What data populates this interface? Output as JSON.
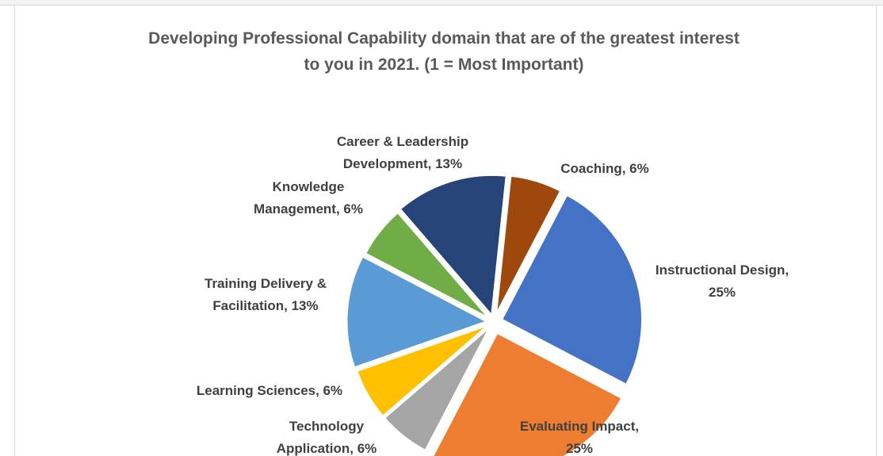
{
  "chart_data": {
    "type": "pie",
    "title_lines": [
      "Developing Professional Capability domain that are of the greatest interest",
      "to you in 2021.  (1 = Most Important)"
    ],
    "slices": [
      {
        "label_lines": [
          "Coaching, 6%"
        ],
        "value": 6,
        "color": "#9e480e"
      },
      {
        "label_lines": [
          "Instructional  Design,",
          "25%"
        ],
        "value": 25,
        "color": "#4472c4"
      },
      {
        "label_lines": [
          "Evaluating Impact,",
          "25%"
        ],
        "value": 25,
        "color": "#ed7d31"
      },
      {
        "label_lines": [
          "Technology",
          "Application,  6%"
        ],
        "value": 6,
        "color": "#a5a5a5"
      },
      {
        "label_lines": [
          "Learning  Sciences, 6%"
        ],
        "value": 6,
        "color": "#ffc000"
      },
      {
        "label_lines": [
          "Training Delivery &",
          "Facilitation, 13%"
        ],
        "value": 13,
        "color": "#5b9bd5"
      },
      {
        "label_lines": [
          "Knowledge",
          "Management, 6%"
        ],
        "value": 6,
        "color": "#70ad47"
      },
      {
        "label_lines": [
          "Career & Leadership",
          "Development, 13%"
        ],
        "value": 13,
        "color": "#264478"
      }
    ]
  }
}
